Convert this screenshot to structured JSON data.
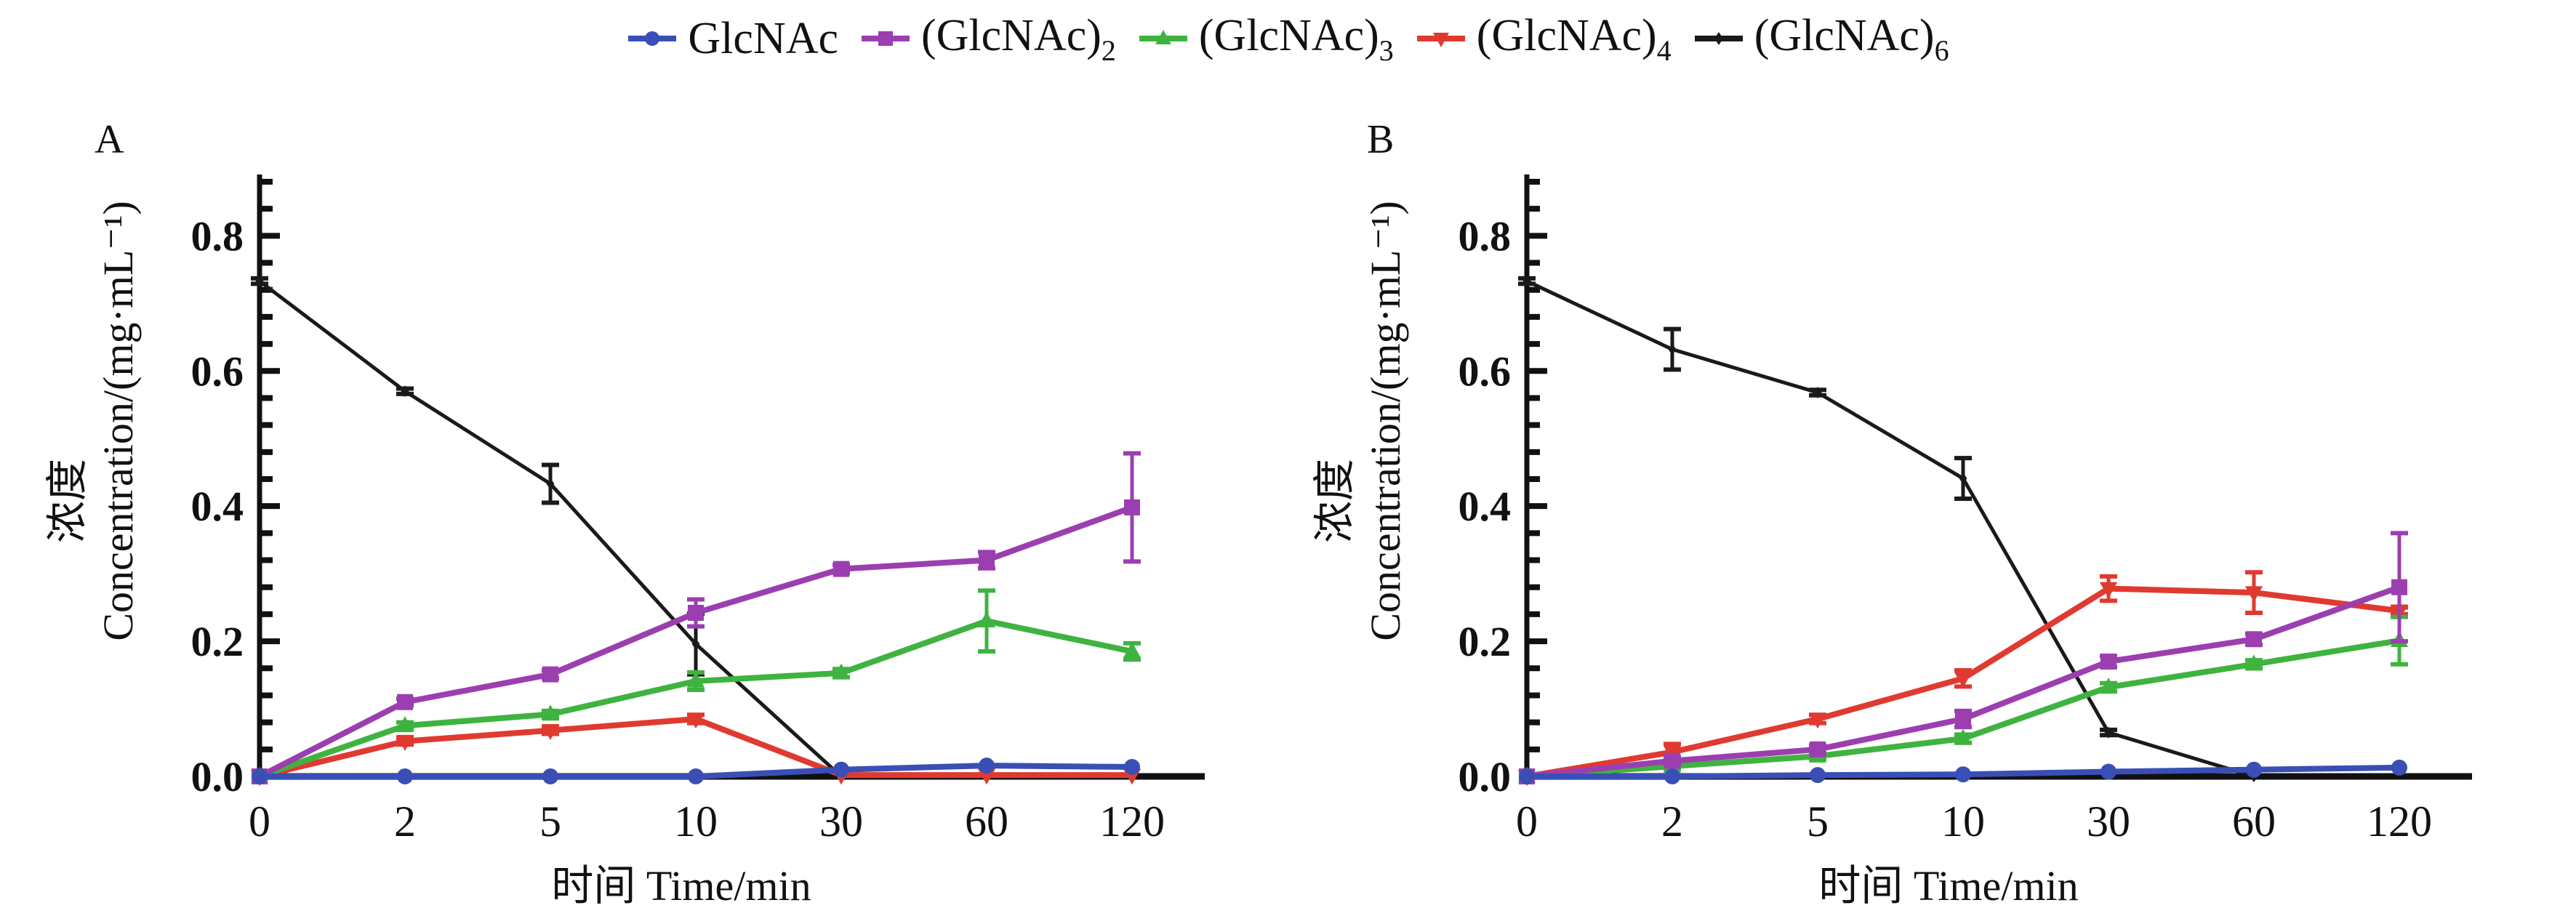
{
  "legend": [
    {
      "label": "GlcNAc",
      "sub": "",
      "color": "#3a4fb5",
      "marker": "circle"
    },
    {
      "label": "(GlcNAc)",
      "sub": "2",
      "color": "#9b3fb0",
      "marker": "square"
    },
    {
      "label": "(GlcNAc)",
      "sub": "3",
      "color": "#3fb33f",
      "marker": "triangle-up"
    },
    {
      "label": "(GlcNAc)",
      "sub": "4",
      "color": "#e03a30",
      "marker": "triangle-down"
    },
    {
      "label": "(GlcNAc)",
      "sub": "6",
      "color": "#1a1a1a",
      "marker": "diamond"
    }
  ],
  "chart_data": [
    {
      "type": "line",
      "panel_label": "A",
      "title": "",
      "xlabel": "时间 Time/min",
      "ylabel_cn": "浓度",
      "ylabel": "Concentration/(mg·mL⁻¹)",
      "categories": [
        "0",
        "2",
        "5",
        "10",
        "30",
        "60",
        "120"
      ],
      "ylim": [
        0,
        0.88
      ],
      "yticks": [
        "0.0",
        "0.2",
        "0.4",
        "0.6",
        "0.8"
      ],
      "grid": false,
      "legend_position": "top-center",
      "series": [
        {
          "name": "GlcNAc",
          "values": [
            0.0,
            0.0,
            0.0,
            0.0,
            0.01,
            0.016,
            0.014
          ],
          "errors": [
            0,
            0,
            0,
            0,
            0.003,
            0.003,
            0.003
          ]
        },
        {
          "name": "(GlcNAc)2",
          "values": [
            0.0,
            0.11,
            0.151,
            0.242,
            0.307,
            0.32,
            0.398
          ],
          "errors": [
            0,
            0.005,
            0.006,
            0.02,
            0.006,
            0.012,
            0.08
          ]
        },
        {
          "name": "(GlcNAc)3",
          "values": [
            0.0,
            0.075,
            0.092,
            0.141,
            0.153,
            0.23,
            0.185
          ],
          "errors": [
            0,
            0.005,
            0.005,
            0.013,
            0.006,
            0.045,
            0.012
          ]
        },
        {
          "name": "(GlcNAc)4",
          "values": [
            0.0,
            0.052,
            0.068,
            0.085,
            0.002,
            0.002,
            0.002
          ],
          "errors": [
            0,
            0.005,
            0.005,
            0.006,
            0,
            0,
            0
          ]
        },
        {
          "name": "(GlcNAc)6",
          "values": [
            0.733,
            0.57,
            0.433,
            0.196,
            0.0,
            null,
            null
          ],
          "errors": [
            0.004,
            0.004,
            0.028,
            0.045,
            0,
            0,
            0
          ]
        }
      ]
    },
    {
      "type": "line",
      "panel_label": "B",
      "title": "",
      "xlabel": "时间 Time/min",
      "ylabel_cn": "浓度",
      "ylabel": "Concentration/(mg·mL⁻¹)",
      "categories": [
        "0",
        "2",
        "5",
        "10",
        "30",
        "60",
        "120"
      ],
      "ylim": [
        0,
        0.88
      ],
      "yticks": [
        "0.0",
        "0.2",
        "0.4",
        "0.6",
        "0.8"
      ],
      "grid": false,
      "legend_position": "top-center",
      "series": [
        {
          "name": "GlcNAc",
          "values": [
            0.0,
            0.0,
            0.002,
            0.003,
            0.007,
            0.01,
            0.013
          ],
          "errors": [
            0,
            0,
            0,
            0,
            0.002,
            0.003,
            0.003
          ]
        },
        {
          "name": "(GlcNAc)2",
          "values": [
            0.0,
            0.023,
            0.04,
            0.085,
            0.17,
            0.203,
            0.28
          ],
          "errors": [
            0,
            0.006,
            0.006,
            0.012,
            0.008,
            0.008,
            0.08
          ]
        },
        {
          "name": "(GlcNAc)3",
          "values": [
            0.0,
            0.015,
            0.03,
            0.056,
            0.132,
            0.166,
            0.201
          ],
          "errors": [
            0,
            0.004,
            0.004,
            0.006,
            0.006,
            0.006,
            0.035
          ]
        },
        {
          "name": "(GlcNAc)4",
          "values": [
            0.0,
            0.036,
            0.085,
            0.145,
            0.278,
            0.272,
            0.245
          ],
          "errors": [
            0,
            0.012,
            0.006,
            0.012,
            0.018,
            0.03,
            0.005
          ]
        },
        {
          "name": "(GlcNAc)6",
          "values": [
            0.733,
            0.632,
            0.568,
            0.441,
            0.065,
            0.0,
            null
          ],
          "errors": [
            0.004,
            0.03,
            0.004,
            0.03,
            0.004,
            0,
            0
          ]
        }
      ]
    }
  ]
}
